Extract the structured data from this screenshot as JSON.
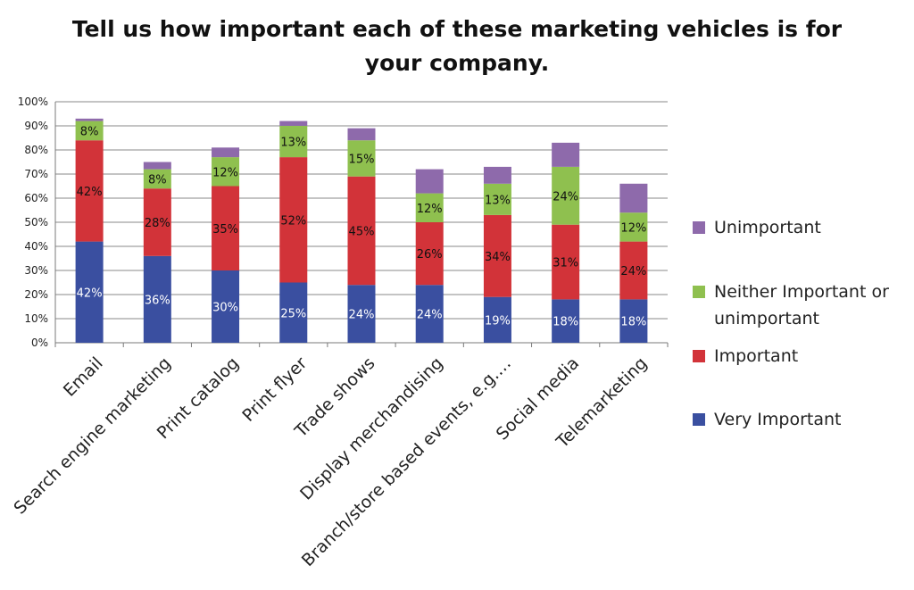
{
  "chart_data": {
    "type": "bar",
    "stacked": true,
    "title_lines": [
      "Tell us how important each of these marketing vehicles is for",
      "your company."
    ],
    "categories": [
      "Email",
      "Search engine marketing",
      "Print catalog",
      "Print flyer",
      "Trade shows",
      "Display merchandising",
      "Branch/store based events, e.g.…",
      "Social media",
      "Telemarketing"
    ],
    "series": [
      {
        "name": "Very Important",
        "color": "#3a4fa0",
        "label_color": "#ffffff",
        "values": [
          42,
          36,
          30,
          25,
          24,
          24,
          19,
          18,
          18
        ]
      },
      {
        "name": "Important",
        "color": "#d23339",
        "label_color": "#111111",
        "values": [
          42,
          28,
          35,
          52,
          45,
          26,
          34,
          31,
          24
        ]
      },
      {
        "name": "Neither Important or unimportant",
        "color": "#8fc04f",
        "label_color": "#111111",
        "values": [
          8,
          8,
          12,
          13,
          15,
          12,
          13,
          24,
          12
        ]
      },
      {
        "name": "Unimportant",
        "color": "#8e6aab",
        "label_color": "#111111",
        "values": [
          1,
          3,
          4,
          2,
          5,
          10,
          7,
          10,
          12
        ]
      }
    ],
    "data_labels": [
      [
        "42%",
        "36%",
        "30%",
        "25%",
        "24%",
        "24%",
        "19%",
        "18%",
        "18%"
      ],
      [
        "42%",
        "28%",
        "35%",
        "52%",
        "45%",
        "26%",
        "34%",
        "31%",
        "24%"
      ],
      [
        "8%",
        "8%",
        "12%",
        "13%",
        "15%",
        "12%",
        "13%",
        "24%",
        "12%"
      ],
      [
        "",
        "",
        "",
        "",
        "",
        "",
        "",
        "",
        ""
      ]
    ],
    "y_ticks": [
      "0%",
      "10%",
      "20%",
      "30%",
      "40%",
      "50%",
      "60%",
      "70%",
      "80%",
      "90%",
      "100%"
    ],
    "ylim": [
      0,
      100
    ],
    "grid": true,
    "legend_position": "right",
    "legend": [
      {
        "lines": [
          "Unimportant"
        ],
        "color": "#8e6aab"
      },
      {
        "lines": [
          "Neither Important or",
          "unimportant"
        ],
        "color": "#8fc04f"
      },
      {
        "lines": [
          "Important"
        ],
        "color": "#d23339"
      },
      {
        "lines": [
          "Very Important"
        ],
        "color": "#3a4fa0"
      }
    ]
  }
}
